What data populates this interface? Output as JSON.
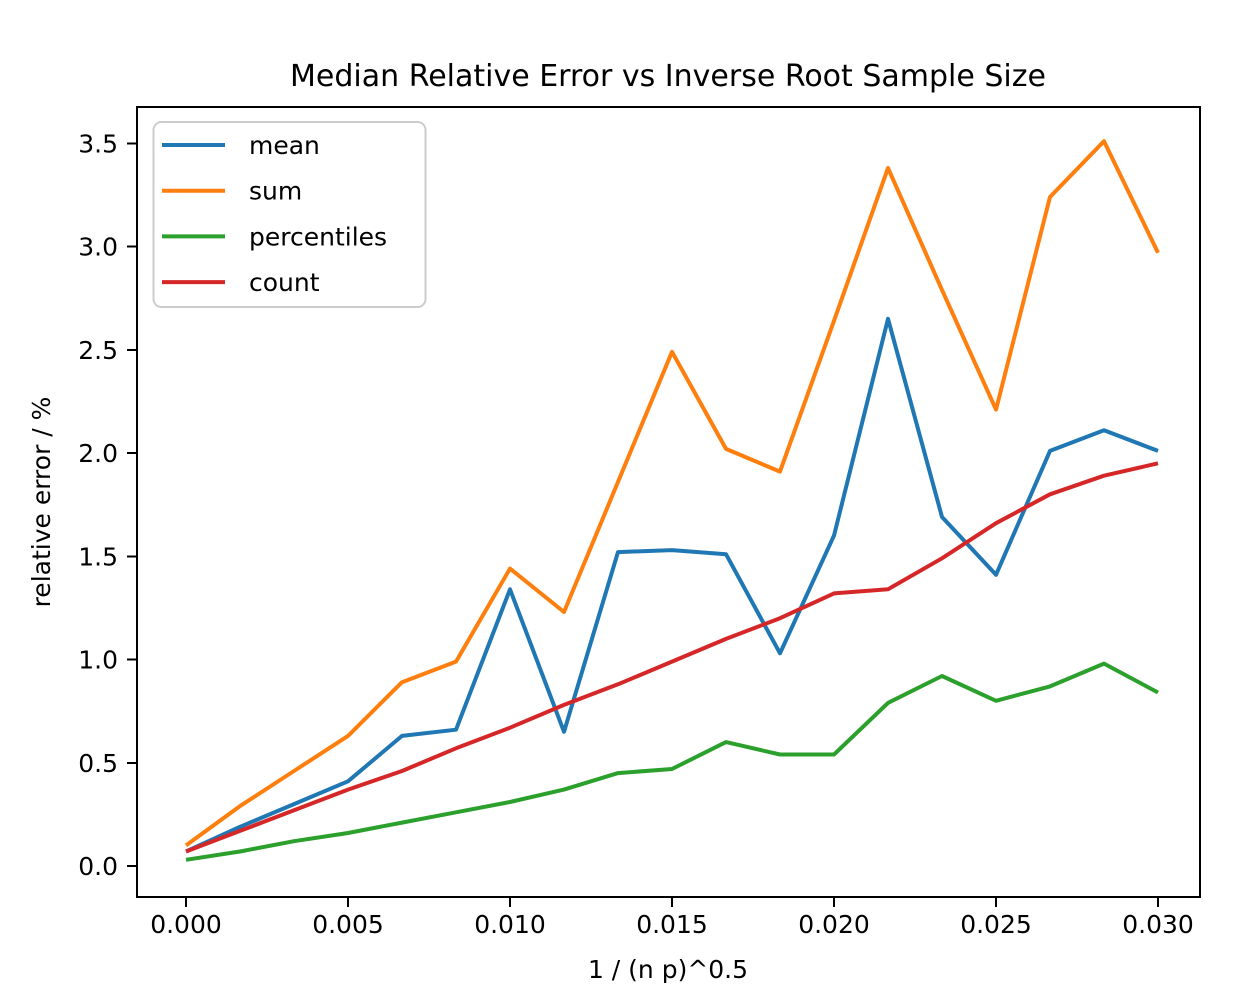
{
  "chart_data": {
    "type": "line",
    "title": "Median Relative Error vs Inverse Root Sample Size",
    "xlabel": "1 / (n p)^0.5",
    "ylabel": "relative error / %",
    "x": [
      0,
      0.001667,
      0.003333,
      0.005,
      0.006667,
      0.008333,
      0.01,
      0.011667,
      0.013333,
      0.015,
      0.016667,
      0.018333,
      0.02,
      0.021667,
      0.023333,
      0.025,
      0.026667,
      0.028333,
      0.03
    ],
    "series": [
      {
        "name": "mean",
        "color": "#1f77b4",
        "values": [
          0.07,
          0.19,
          0.3,
          0.41,
          0.63,
          0.66,
          1.34,
          0.65,
          1.52,
          1.53,
          1.51,
          1.03,
          1.6,
          2.65,
          1.69,
          1.41,
          2.01,
          2.11,
          2.01
        ]
      },
      {
        "name": "sum",
        "color": "#ff7f0e",
        "values": [
          0.1,
          0.29,
          0.46,
          0.63,
          0.89,
          0.99,
          1.44,
          1.23,
          1.86,
          2.49,
          2.02,
          1.91,
          2.64,
          3.38,
          2.79,
          2.21,
          3.24,
          3.51,
          2.97
        ]
      },
      {
        "name": "percentiles",
        "color": "#2ca02c",
        "values": [
          0.03,
          0.07,
          0.12,
          0.16,
          0.21,
          0.26,
          0.31,
          0.37,
          0.45,
          0.47,
          0.6,
          0.54,
          0.54,
          0.79,
          0.92,
          0.8,
          0.87,
          0.98,
          0.84
        ]
      },
      {
        "name": "count",
        "color": "#d62728",
        "values": [
          0.07,
          0.17,
          0.27,
          0.37,
          0.46,
          0.57,
          0.67,
          0.78,
          0.88,
          0.99,
          1.1,
          1.2,
          1.32,
          1.34,
          1.49,
          1.66,
          1.8,
          1.89,
          1.95
        ]
      }
    ],
    "x_ticks": [
      {
        "value": 0.0,
        "label": "0.000"
      },
      {
        "value": 0.005,
        "label": "0.005"
      },
      {
        "value": 0.01,
        "label": "0.010"
      },
      {
        "value": 0.015,
        "label": "0.015"
      },
      {
        "value": 0.02,
        "label": "0.020"
      },
      {
        "value": 0.025,
        "label": "0.025"
      },
      {
        "value": 0.03,
        "label": "0.030"
      }
    ],
    "y_ticks": [
      {
        "value": 0.0,
        "label": "0.0"
      },
      {
        "value": 0.5,
        "label": "0.5"
      },
      {
        "value": 1.0,
        "label": "1.0"
      },
      {
        "value": 1.5,
        "label": "1.5"
      },
      {
        "value": 2.0,
        "label": "2.0"
      },
      {
        "value": 2.5,
        "label": "2.5"
      },
      {
        "value": 3.0,
        "label": "3.0"
      },
      {
        "value": 3.5,
        "label": "3.5"
      }
    ],
    "xlim": [
      -0.001512,
      0.031296
    ],
    "ylim": [
      -0.1501,
      3.6756
    ],
    "legend_position": "upper left",
    "grid": false
  }
}
